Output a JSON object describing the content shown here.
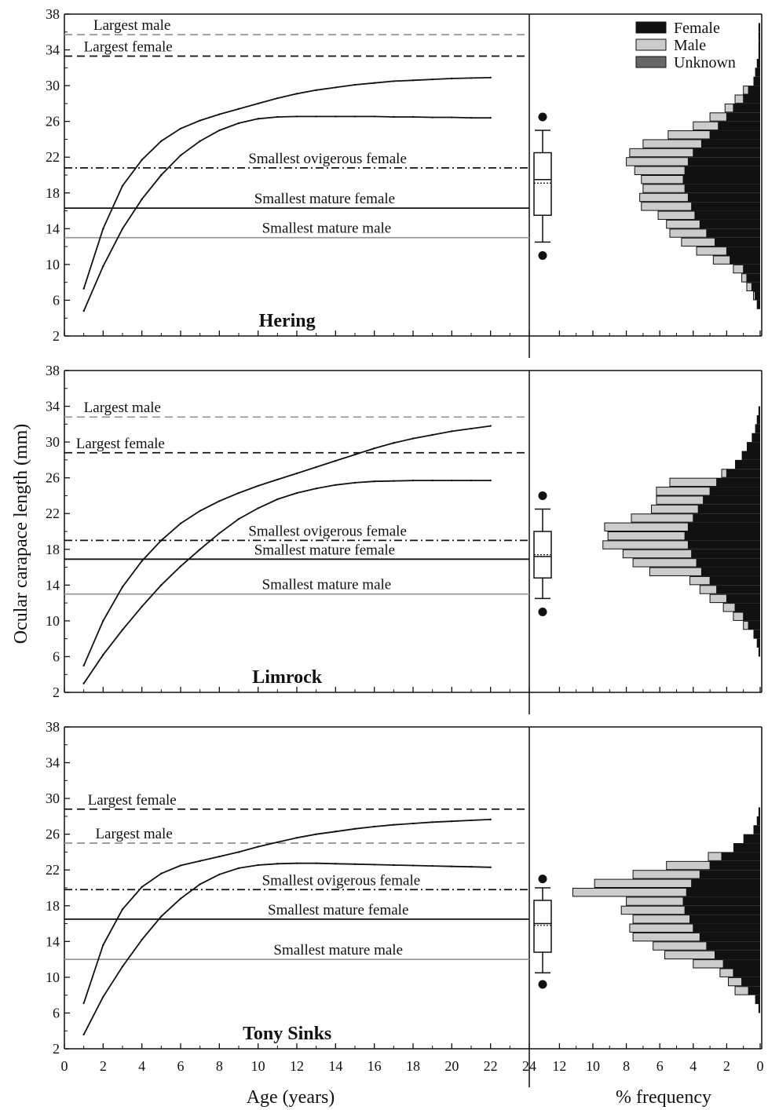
{
  "figure": {
    "xlabel_left": "Age (years)",
    "xlabel_right": "% frequency",
    "ylabel": "Ocular carapace length (mm)",
    "legend": [
      {
        "label": "Female",
        "color": "#111111"
      },
      {
        "label": "Male",
        "color": "#cccccc"
      },
      {
        "label": "Unknown",
        "color": "#666666"
      }
    ],
    "colors": {
      "dark_line": "#111111",
      "gray_line": "#999999",
      "male_fill": "#cccccc",
      "female_fill": "#111111"
    }
  },
  "chart_data": [
    {
      "type": "line",
      "title": "Hering",
      "ylim": [
        2,
        38
      ],
      "xlim": [
        0,
        24
      ],
      "yticks": [
        2,
        6,
        10,
        14,
        18,
        22,
        26,
        30,
        34,
        38
      ],
      "xticks": [
        0,
        2,
        4,
        6,
        8,
        10,
        12,
        14,
        16,
        18,
        20,
        22,
        24
      ],
      "series": [
        {
          "x": [
            1,
            2,
            3,
            4,
            5,
            6,
            7,
            8,
            9,
            10,
            11,
            12,
            13,
            14,
            15,
            16,
            17,
            18,
            19,
            20,
            21,
            22
          ],
          "y": [
            7.3,
            14.0,
            18.8,
            21.7,
            23.8,
            25.2,
            26.1,
            26.8,
            27.4,
            28.0,
            28.6,
            29.1,
            29.5,
            29.8,
            30.1,
            30.3,
            30.5,
            30.6,
            30.7,
            30.8,
            30.85,
            30.9
          ]
        },
        {
          "x": [
            1,
            2,
            3,
            4,
            5,
            6,
            7,
            8,
            9,
            10,
            11,
            12,
            13,
            14,
            15,
            16,
            17,
            18,
            19,
            20,
            21,
            22
          ],
          "y": [
            4.8,
            9.8,
            14.0,
            17.3,
            20.0,
            22.2,
            23.8,
            25.0,
            25.8,
            26.3,
            26.5,
            26.55,
            26.55,
            26.55,
            26.55,
            26.55,
            26.5,
            26.5,
            26.45,
            26.45,
            26.4,
            26.4
          ]
        }
      ],
      "reference_lines": [
        {
          "label": "Largest male",
          "y": 35.7,
          "style": "dashed-gray",
          "label_x": 1.5
        },
        {
          "label": "Largest female",
          "y": 33.3,
          "style": "dashed-dark",
          "label_x": 1.0
        },
        {
          "label": "Smallest ovigerous female",
          "y": 20.8,
          "style": "dashdot",
          "label_x": 9.5
        },
        {
          "label": "Smallest mature female",
          "y": 16.3,
          "style": "solid-dark",
          "label_x": 9.8
        },
        {
          "label": "Smallest mature male",
          "y": 13.0,
          "style": "solid-gray",
          "label_x": 10.2
        }
      ],
      "boxplot": {
        "whisker_low": 12.5,
        "q1": 15.5,
        "median": 19.5,
        "mean": 19.1,
        "q3": 22.5,
        "whisker_high": 25.0,
        "outliers": [
          11.0,
          26.5
        ]
      },
      "histogram": {
        "bins": [
          5.5,
          6.5,
          7.5,
          8.5,
          9.5,
          10.5,
          11.5,
          12.5,
          13.5,
          14.5,
          15.5,
          16.5,
          17.5,
          18.5,
          19.5,
          20.5,
          21.5,
          22.5,
          23.5,
          24.5,
          25.5,
          26.5,
          27.5,
          28.5,
          29.5,
          30.5,
          31.5,
          32.5,
          33.5,
          34.5,
          35.5,
          36.5
        ],
        "female": [
          0.2,
          0.3,
          0.5,
          0.8,
          1.0,
          1.8,
          2.0,
          2.7,
          3.2,
          3.6,
          3.9,
          4.1,
          4.3,
          4.5,
          4.6,
          4.5,
          4.3,
          4.0,
          3.5,
          3.0,
          2.5,
          2.0,
          1.6,
          1.0,
          0.7,
          0.4,
          0.3,
          0.2,
          0.1,
          0.1,
          0.1,
          0.1
        ],
        "male": [
          0.0,
          0.1,
          0.3,
          0.3,
          0.6,
          1.0,
          1.8,
          2.0,
          2.2,
          2.0,
          2.2,
          3.0,
          2.9,
          2.5,
          2.5,
          3.0,
          3.7,
          3.8,
          3.5,
          2.5,
          1.5,
          1.0,
          0.5,
          0.5,
          0.3,
          0.0,
          0.0,
          0.0,
          0.0,
          0.0,
          0.0,
          0.0
        ]
      }
    },
    {
      "type": "line",
      "title": "Limrock",
      "ylim": [
        2,
        38
      ],
      "xlim": [
        0,
        24
      ],
      "yticks": [
        2,
        6,
        10,
        14,
        18,
        22,
        26,
        30,
        34,
        38
      ],
      "xticks": [
        0,
        2,
        4,
        6,
        8,
        10,
        12,
        14,
        16,
        18,
        20,
        22,
        24
      ],
      "series": [
        {
          "x": [
            1,
            2,
            3,
            4,
            5,
            6,
            7,
            8,
            9,
            10,
            11,
            12,
            13,
            14,
            15,
            16,
            17,
            18,
            19,
            20,
            21,
            22
          ],
          "y": [
            5.0,
            10.0,
            13.8,
            16.7,
            19.0,
            20.9,
            22.3,
            23.4,
            24.3,
            25.1,
            25.8,
            26.5,
            27.2,
            27.9,
            28.6,
            29.3,
            29.9,
            30.4,
            30.8,
            31.2,
            31.5,
            31.8
          ]
        },
        {
          "x": [
            1,
            2,
            3,
            4,
            5,
            6,
            7,
            8,
            9,
            10,
            11,
            12,
            13,
            14,
            15,
            16,
            17,
            18,
            19,
            20,
            21,
            22
          ],
          "y": [
            3.0,
            6.2,
            9.0,
            11.6,
            14.0,
            16.1,
            18.0,
            19.8,
            21.4,
            22.6,
            23.6,
            24.3,
            24.8,
            25.2,
            25.45,
            25.6,
            25.65,
            25.7,
            25.7,
            25.7,
            25.7,
            25.7
          ]
        }
      ],
      "reference_lines": [
        {
          "label": "Largest male",
          "y": 32.8,
          "style": "dashed-gray",
          "label_x": 1.0
        },
        {
          "label": "Largest female",
          "y": 28.8,
          "style": "dashed-dark",
          "label_x": 0.6
        },
        {
          "label": "Smallest ovigerous female",
          "y": 19.0,
          "style": "dashdot",
          "label_x": 9.5
        },
        {
          "label": "Smallest mature female",
          "y": 16.9,
          "style": "solid-dark",
          "label_x": 9.8
        },
        {
          "label": "Smallest mature male",
          "y": 13.0,
          "style": "solid-gray",
          "label_x": 10.2
        }
      ],
      "boxplot": {
        "whisker_low": 12.5,
        "q1": 14.8,
        "median": 17.2,
        "mean": 17.4,
        "q3": 20.0,
        "whisker_high": 22.5,
        "outliers": [
          11.0,
          24.0
        ]
      },
      "histogram": {
        "bins": [
          6.5,
          7.5,
          8.5,
          9.5,
          10.5,
          11.5,
          12.5,
          13.5,
          14.5,
          15.5,
          16.5,
          17.5,
          18.5,
          19.5,
          20.5,
          21.5,
          22.5,
          23.5,
          24.5,
          25.5,
          26.5,
          27.5,
          28.5,
          29.5,
          30.5,
          31.5,
          32.5,
          33.5
        ],
        "female": [
          0.1,
          0.2,
          0.4,
          0.7,
          1.0,
          1.5,
          2.0,
          2.6,
          3.0,
          3.5,
          3.8,
          4.1,
          4.3,
          4.5,
          4.3,
          4.0,
          3.7,
          3.4,
          3.0,
          2.6,
          2.0,
          1.5,
          1.1,
          0.8,
          0.5,
          0.3,
          0.2,
          0.1
        ],
        "male": [
          0.0,
          0.0,
          0.0,
          0.3,
          0.6,
          0.7,
          1.0,
          1.0,
          1.2,
          3.1,
          3.8,
          4.1,
          5.1,
          4.6,
          5.0,
          3.7,
          2.8,
          2.8,
          3.2,
          2.8,
          0.3,
          0.0,
          0.0,
          0.0,
          0.0,
          0.0,
          0.0,
          0.0
        ]
      }
    },
    {
      "type": "line",
      "title": "Tony Sinks",
      "ylim": [
        2,
        38
      ],
      "xlim": [
        0,
        24
      ],
      "yticks": [
        2,
        6,
        10,
        14,
        18,
        22,
        26,
        30,
        34,
        38
      ],
      "xticks": [
        0,
        2,
        4,
        6,
        8,
        10,
        12,
        14,
        16,
        18,
        20,
        22,
        24
      ],
      "series": [
        {
          "x": [
            1,
            2,
            3,
            4,
            5,
            6,
            7,
            8,
            9,
            10,
            11,
            12,
            13,
            14,
            15,
            16,
            17,
            18,
            19,
            20,
            21,
            22
          ],
          "y": [
            7.1,
            13.6,
            17.6,
            20.1,
            21.6,
            22.5,
            23.0,
            23.5,
            24.0,
            24.6,
            25.1,
            25.6,
            26.0,
            26.3,
            26.6,
            26.85,
            27.05,
            27.2,
            27.35,
            27.45,
            27.55,
            27.65
          ]
        },
        {
          "x": [
            1,
            2,
            3,
            4,
            5,
            6,
            7,
            8,
            9,
            10,
            11,
            12,
            13,
            14,
            15,
            16,
            17,
            18,
            19,
            20,
            21,
            22
          ],
          "y": [
            3.6,
            7.8,
            11.2,
            14.2,
            16.8,
            18.8,
            20.4,
            21.5,
            22.2,
            22.55,
            22.7,
            22.75,
            22.75,
            22.7,
            22.65,
            22.6,
            22.55,
            22.5,
            22.45,
            22.4,
            22.35,
            22.3
          ]
        }
      ],
      "reference_lines": [
        {
          "label": "Largest female",
          "y": 28.8,
          "style": "dashed-dark",
          "label_x": 1.2
        },
        {
          "label": "Largest male",
          "y": 25.0,
          "style": "dashed-gray",
          "label_x": 1.6
        },
        {
          "label": "Smallest ovigerous female",
          "y": 19.8,
          "style": "dashdot",
          "label_x": 10.2
        },
        {
          "label": "Smallest mature female",
          "y": 16.5,
          "style": "solid-dark",
          "label_x": 10.5
        },
        {
          "label": "Smallest mature male",
          "y": 12.0,
          "style": "solid-gray",
          "label_x": 10.8
        }
      ],
      "boxplot": {
        "whisker_low": 10.5,
        "q1": 12.8,
        "median": 16.0,
        "mean": 15.8,
        "q3": 18.6,
        "whisker_high": 20.0,
        "outliers": [
          9.2,
          21.0
        ]
      },
      "histogram": {
        "bins": [
          6.5,
          7.5,
          8.5,
          9.5,
          10.5,
          11.5,
          12.5,
          13.5,
          14.5,
          15.5,
          16.5,
          17.5,
          18.5,
          19.5,
          20.5,
          21.5,
          22.5,
          23.5,
          24.5,
          25.5,
          26.5,
          27.5,
          28.5
        ],
        "female": [
          0.1,
          0.3,
          0.7,
          1.1,
          1.6,
          2.2,
          2.7,
          3.2,
          3.6,
          4.0,
          4.2,
          4.5,
          4.6,
          4.4,
          4.1,
          3.6,
          3.0,
          2.3,
          1.6,
          1.0,
          0.4,
          0.2,
          0.1
        ],
        "male": [
          0.0,
          0.0,
          0.8,
          0.8,
          0.8,
          1.8,
          3.0,
          3.2,
          4.0,
          3.8,
          3.4,
          3.8,
          3.4,
          6.8,
          5.8,
          4.0,
          2.6,
          0.8,
          0.0,
          0.0,
          0.0,
          0.0,
          0.0
        ]
      }
    }
  ]
}
